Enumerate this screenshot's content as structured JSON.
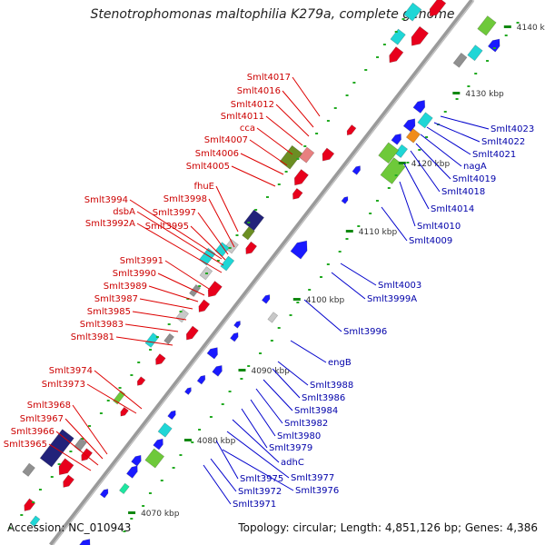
{
  "title": "Stenotrophomonas maltophilia K279a, complete genome",
  "accession": "Accession: NC_010943",
  "topology": "Topology: circular; Length: 4,851,126 bp; Genes: 4,386",
  "colors": {
    "left_label": "#dd0000",
    "right_label": "#0000cc",
    "backbone": "#999999",
    "tick": "#118811"
  },
  "ticks": [
    "4070 kbp",
    "4080 kbp",
    "4090 kbp",
    "4100 kbp",
    "4110 kbp",
    "4120 kbp",
    "4130 kbp",
    "4140 kbp"
  ],
  "left_labels": [
    "Smlt4017",
    "Smlt4016",
    "Smlt4012",
    "Smlt4011",
    "cca",
    "Smlt4007",
    "Smlt4006",
    "Smlt4005",
    "fhuE",
    "Smlt3994",
    "Smlt3998",
    "dsbA",
    "Smlt3997",
    "Smlt3992A",
    "Smlt3995",
    "Smlt3991",
    "Smlt3990",
    "Smlt3989",
    "Smlt3987",
    "Smlt3985",
    "Smlt3983",
    "Smlt3981",
    "Smlt3974",
    "Smlt3973",
    "Smlt3968",
    "Smlt3967",
    "Smlt3966",
    "Smlt3965"
  ],
  "right_labels": [
    "Smlt4023",
    "Smlt4022",
    "Smlt4021",
    "nagA",
    "Smlt4019",
    "Smlt4018",
    "Smlt4014",
    "Smlt4010",
    "Smlt4009",
    "Smlt4003",
    "Smlt3999A",
    "Smlt3996",
    "engB",
    "Smlt3988",
    "Smlt3986",
    "Smlt3984",
    "Smlt3982",
    "Smlt3980",
    "Smlt3979",
    "adhC",
    "Smlt3977",
    "Smlt3975",
    "Smlt3976",
    "Smlt3972",
    "Smlt3971"
  ]
}
